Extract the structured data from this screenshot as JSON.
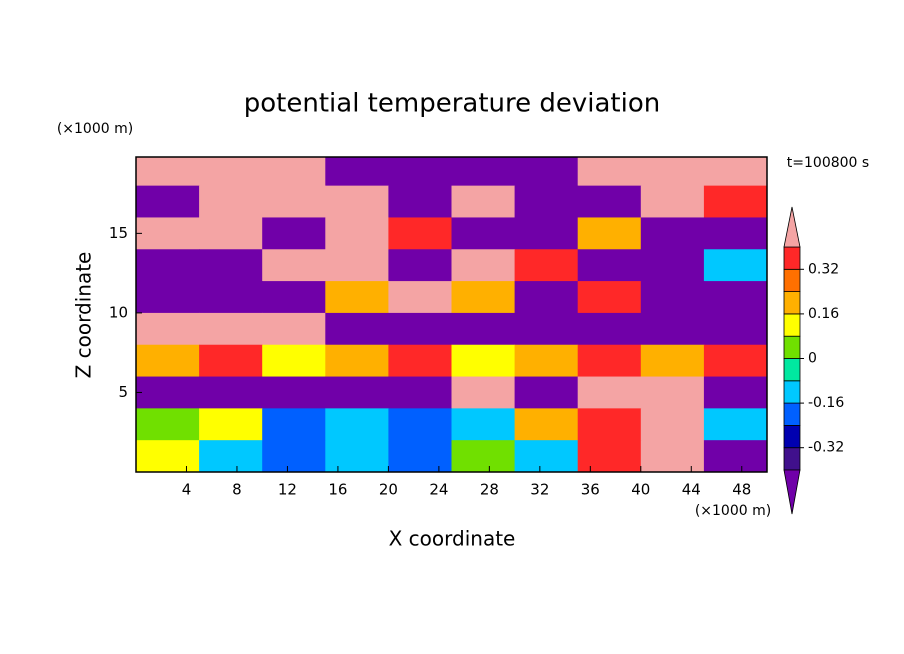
{
  "chart_data": {
    "type": "contour",
    "title": "potential temperature deviation",
    "x_label": "X coordinate",
    "y_label": "Z coordinate",
    "x_unit": "(×1000 m)",
    "y_unit": "(×1000 m)",
    "annotation": "t=100800 s",
    "xlim": [
      0,
      50
    ],
    "ylim": [
      0,
      19.8
    ],
    "xticks": [
      4,
      8,
      12,
      16,
      20,
      24,
      28,
      32,
      36,
      40,
      44,
      48
    ],
    "yticks": [
      5,
      10,
      15
    ],
    "x": [
      2.5,
      7.5,
      12.5,
      17.5,
      22.5,
      27.5,
      32.5,
      37.5,
      42.5,
      47.5
    ],
    "y": [
      19,
      17,
      15,
      13,
      11,
      9,
      7,
      5,
      3,
      1
    ],
    "z": [
      [
        0.5,
        0.5,
        0.5,
        -0.5,
        -0.5,
        -0.5,
        -0.5,
        0.5,
        0.5,
        0.5
      ],
      [
        -0.5,
        0.5,
        0.5,
        0.5,
        -0.5,
        0.5,
        -0.5,
        -0.5,
        0.5,
        0.36
      ],
      [
        0.5,
        0.5,
        -0.5,
        0.5,
        0.36,
        -0.5,
        -0.5,
        0.2,
        -0.5,
        -0.5
      ],
      [
        -0.5,
        -0.5,
        0.5,
        0.5,
        -0.5,
        0.5,
        0.36,
        -0.5,
        -0.5,
        -0.12
      ],
      [
        -0.5,
        -0.5,
        -0.5,
        0.2,
        0.5,
        0.2,
        -0.5,
        0.36,
        -0.5,
        -0.5
      ],
      [
        0.5,
        0.5,
        0.5,
        -0.5,
        -0.5,
        -0.5,
        -0.5,
        -0.5,
        -0.5,
        -0.5
      ],
      [
        0.2,
        0.36,
        0.12,
        0.2,
        0.36,
        0.12,
        0.2,
        0.36,
        0.2,
        0.36
      ],
      [
        -0.5,
        -0.5,
        -0.5,
        -0.5,
        -0.5,
        0.5,
        -0.5,
        0.5,
        0.5,
        -0.5
      ],
      [
        0.04,
        0.12,
        -0.2,
        -0.12,
        -0.2,
        -0.12,
        0.2,
        0.36,
        0.5,
        -0.12
      ],
      [
        0.12,
        -0.12,
        -0.2,
        -0.12,
        -0.2,
        0.04,
        -0.12,
        0.36,
        0.5,
        -0.5
      ]
    ],
    "levels": [
      -0.4,
      -0.32,
      -0.24,
      -0.16,
      -0.08,
      0,
      0.08,
      0.16,
      0.24,
      0.32,
      0.4
    ],
    "colors": [
      "#7000a8",
      "#40108c",
      "#0000b0",
      "#0060ff",
      "#00c8ff",
      "#00e8a0",
      "#70e000",
      "#ffff00",
      "#ffb000",
      "#ff7000",
      "#ff2828",
      "#f4a4a4"
    ],
    "colorbar_ticks": [
      -0.32,
      -0.16,
      0,
      0.16,
      0.32
    ]
  }
}
